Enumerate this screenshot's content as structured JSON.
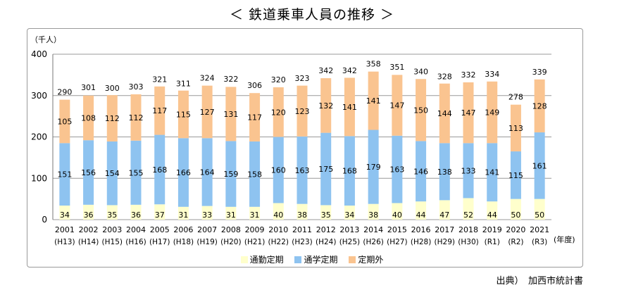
{
  "title": "＜ 鉄道乗車人員の推移 ＞",
  "source": "出典）　加西市統計書",
  "colors": {
    "teiki_tsukin": "#ffffcc",
    "teiki_tsugaku": "#8ec3f0",
    "teikigai": "#fac490",
    "grid": "#999999"
  },
  "chart_data": {
    "type": "bar",
    "stacked": true,
    "unit_label": "（千人）",
    "x_unit_label": "(年度)",
    "ylim": [
      0,
      400
    ],
    "y_ticks": [
      0,
      100,
      200,
      300,
      400
    ],
    "grid": true,
    "legend_position": "bottom",
    "categories": [
      "2001",
      "2002",
      "2003",
      "2004",
      "2005",
      "2006",
      "2007",
      "2008",
      "2009",
      "2010",
      "2011",
      "2012",
      "2013",
      "2014",
      "2015",
      "2016",
      "2017",
      "2018",
      "2019",
      "2020",
      "2021"
    ],
    "era_labels": [
      "(H13)",
      "(H14)",
      "(H15)",
      "(H16)",
      "(H17)",
      "(H18)",
      "(H19)",
      "(H20)",
      "(H21)",
      "(H22)",
      "(H23)",
      "(H24)",
      "(H25)",
      "(H26)",
      "(H27)",
      "(H28)",
      "(H29)",
      "(H30)",
      "(R1)",
      "(R2)",
      "(R3)"
    ],
    "series": [
      {
        "name": "通勤定期",
        "values": [
          34,
          36,
          35,
          36,
          37,
          31,
          33,
          31,
          31,
          40,
          38,
          35,
          34,
          38,
          40,
          44,
          47,
          52,
          44,
          50,
          50
        ]
      },
      {
        "name": "通学定期",
        "values": [
          151,
          156,
          154,
          155,
          168,
          166,
          164,
          159,
          158,
          160,
          163,
          175,
          168,
          179,
          163,
          146,
          138,
          133,
          141,
          115,
          161
        ]
      },
      {
        "name": "定期外",
        "values": [
          105,
          108,
          112,
          112,
          117,
          115,
          127,
          131,
          117,
          120,
          123,
          132,
          141,
          141,
          147,
          150,
          144,
          147,
          149,
          113,
          128
        ]
      }
    ],
    "totals": [
      290,
      301,
      300,
      303,
      321,
      311,
      324,
      322,
      306,
      320,
      323,
      342,
      342,
      358,
      351,
      340,
      328,
      332,
      334,
      278,
      339
    ]
  }
}
